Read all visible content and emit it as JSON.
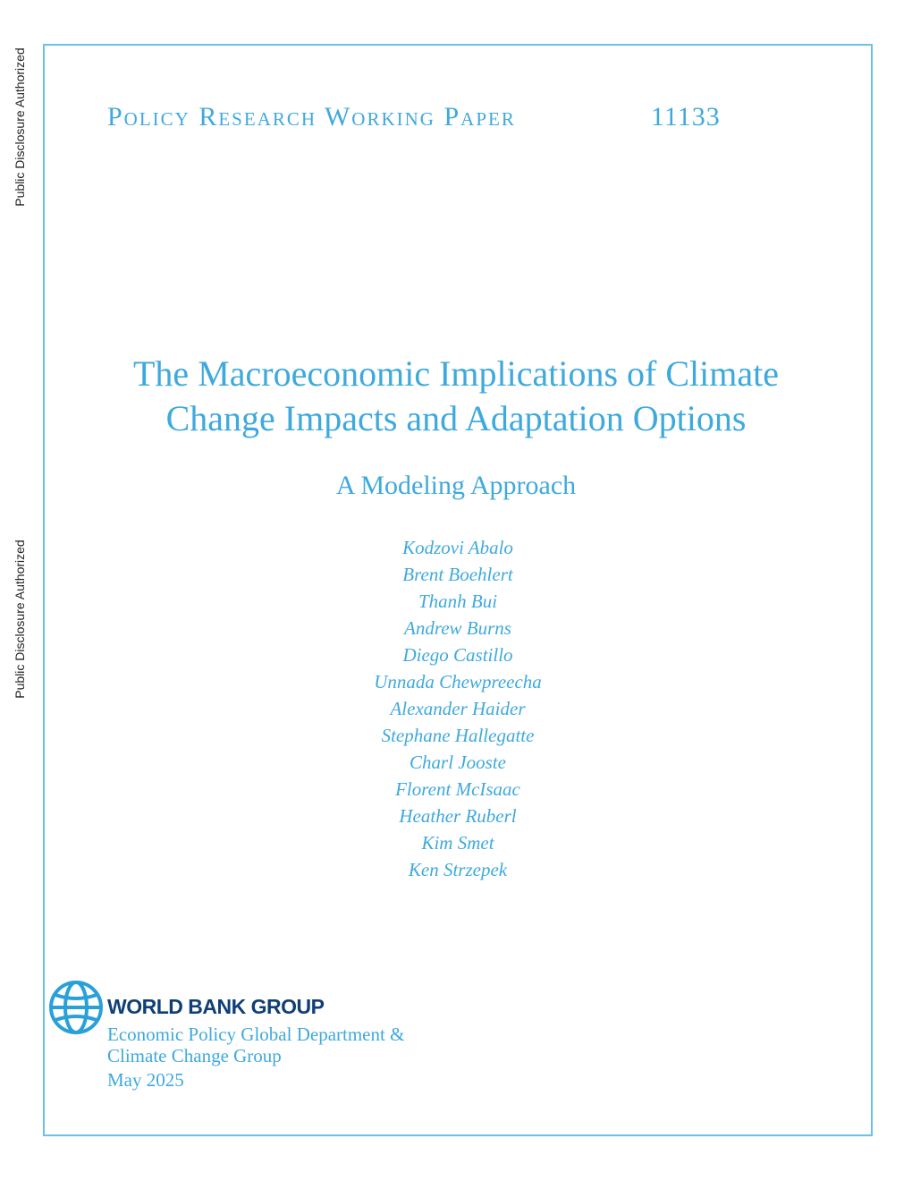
{
  "side_labels": [
    "Public Disclosure Authorized",
    "Public Disclosure Authorized"
  ],
  "header": {
    "series": "Policy Research Working Paper",
    "number": "11133"
  },
  "title_lines": [
    "The Macroeconomic Implications of Climate",
    "Change Impacts and Adaptation Options"
  ],
  "subtitle": "A Modeling Approach",
  "authors": [
    "Kodzovi Abalo",
    "Brent Boehlert",
    "Thanh Bui",
    "Andrew Burns",
    "Diego Castillo",
    "Unnada Chewpreecha",
    "Alexander Haider",
    "Stephane Hallegatte",
    "Charl Jooste",
    "Florent McIsaac",
    "Heather Ruberl",
    "Kim Smet",
    "Ken Strzepek"
  ],
  "footer": {
    "logo_text": "WORLD BANK GROUP",
    "department_lines": [
      "Economic Policy Global Department &",
      "Climate Change Group"
    ],
    "date": "May 2025"
  }
}
